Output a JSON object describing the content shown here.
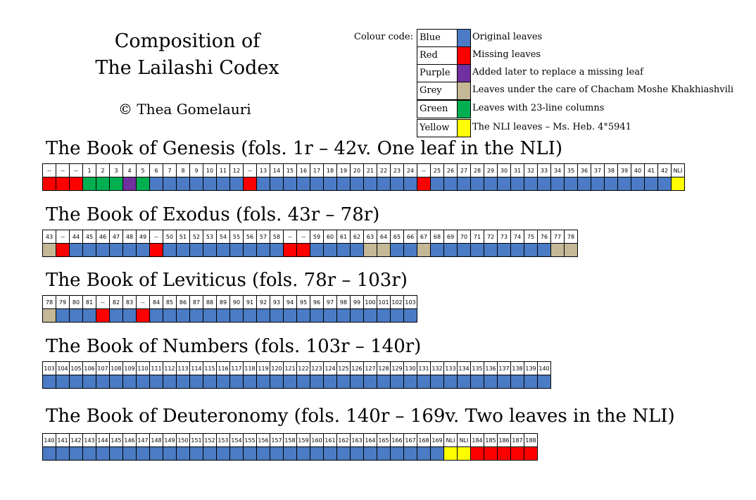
{
  "header": {
    "title_lines": [
      "Composition of",
      "The Lailashi Codex"
    ],
    "copyright": "© Thea Gomelauri"
  },
  "legend": {
    "caption": "Colour code:",
    "items": [
      {
        "name": "Blue",
        "color": "#4a7bc4",
        "description": "Original leaves"
      },
      {
        "name": "Red",
        "color": "#ff0000",
        "description": "Missing leaves"
      },
      {
        "name": "Purple",
        "color": "#7030a0",
        "description": "Added later to replace a missing leaf"
      },
      {
        "name": "Grey",
        "color": "#c4b896",
        "description": "Leaves under the care of Chacham Moshe Khakhiashvili"
      },
      {
        "name": "Green",
        "color": "#00b050",
        "description": "Leaves with 23-line columns"
      },
      {
        "name": "Yellow",
        "color": "#ffff00",
        "description": "The NLI leaves – Ms. Heb. 4°5941"
      }
    ]
  },
  "books": [
    {
      "title": "The Book of Genesis (fols. 1r – 42v. One leaf in the NLI)",
      "labels": [
        "--",
        "--",
        "--",
        "1",
        "2",
        "3",
        "4",
        "5",
        "6",
        "7",
        "8",
        "9",
        "10",
        "11",
        "12",
        "--",
        "13",
        "14",
        "15",
        "16",
        "17",
        "18",
        "19",
        "20",
        "21",
        "22",
        "23",
        "24",
        "--",
        "25",
        "26",
        "27",
        "28",
        "29",
        "30",
        "31",
        "32",
        "33",
        "34",
        "35",
        "36",
        "37",
        "38",
        "39",
        "40",
        "41",
        "42",
        "NLI"
      ],
      "colors": [
        "Red",
        "Red",
        "Red",
        "Green",
        "Green",
        "Green",
        "Purple",
        "Green",
        "Blue",
        "Blue",
        "Blue",
        "Blue",
        "Blue",
        "Blue",
        "Blue",
        "Red",
        "Blue",
        "Blue",
        "Blue",
        "Blue",
        "Blue",
        "Blue",
        "Blue",
        "Blue",
        "Blue",
        "Blue",
        "Blue",
        "Blue",
        "Red",
        "Blue",
        "Blue",
        "Blue",
        "Blue",
        "Blue",
        "Blue",
        "Blue",
        "Blue",
        "Blue",
        "Blue",
        "Blue",
        "Blue",
        "Blue",
        "Blue",
        "Blue",
        "Blue",
        "Blue",
        "Blue",
        "Yellow"
      ]
    },
    {
      "title": "The Book of Exodus (fols. 43r – 78r)",
      "labels": [
        "43",
        "--",
        "44",
        "45",
        "46",
        "47",
        "48",
        "49",
        "--",
        "50",
        "51",
        "52",
        "53",
        "54",
        "55",
        "56",
        "57",
        "58",
        "--",
        "--",
        "59",
        "60",
        "61",
        "62",
        "63",
        "64",
        "65",
        "66",
        "67",
        "68",
        "69",
        "70",
        "71",
        "72",
        "73",
        "74",
        "75",
        "76",
        "77",
        "78"
      ],
      "colors": [
        "Grey",
        "Red",
        "Blue",
        "Blue",
        "Blue",
        "Blue",
        "Blue",
        "Blue",
        "Red",
        "Blue",
        "Blue",
        "Blue",
        "Blue",
        "Blue",
        "Blue",
        "Blue",
        "Blue",
        "Blue",
        "Red",
        "Red",
        "Blue",
        "Blue",
        "Blue",
        "Blue",
        "Grey",
        "Grey",
        "Blue",
        "Blue",
        "Grey",
        "Blue",
        "Blue",
        "Blue",
        "Blue",
        "Blue",
        "Blue",
        "Blue",
        "Blue",
        "Blue",
        "Grey",
        "Grey"
      ]
    },
    {
      "title": "The Book of Leviticus (fols. 78r – 103r)",
      "labels": [
        "78",
        "79",
        "80",
        "81",
        "--",
        "82",
        "83",
        "--",
        "84",
        "85",
        "86",
        "87",
        "88",
        "89",
        "90",
        "91",
        "92",
        "93",
        "94",
        "95",
        "96",
        "97",
        "98",
        "99",
        "100",
        "101",
        "102",
        "103"
      ],
      "colors": [
        "Grey",
        "Blue",
        "Blue",
        "Blue",
        "Red",
        "Blue",
        "Blue",
        "Red",
        "Blue",
        "Blue",
        "Blue",
        "Blue",
        "Blue",
        "Blue",
        "Blue",
        "Blue",
        "Blue",
        "Blue",
        "Blue",
        "Blue",
        "Blue",
        "Blue",
        "Blue",
        "Blue",
        "Blue",
        "Blue",
        "Blue",
        "Blue"
      ]
    },
    {
      "title": "The Book of Numbers (fols. 103r – 140r)",
      "labels": [
        "103",
        "104",
        "105",
        "106",
        "107",
        "108",
        "109",
        "110",
        "111",
        "112",
        "113",
        "114",
        "115",
        "116",
        "117",
        "118",
        "119",
        "120",
        "121",
        "122",
        "123",
        "124",
        "125",
        "126",
        "127",
        "128",
        "129",
        "130",
        "131",
        "132",
        "133",
        "134",
        "135",
        "136",
        "137",
        "138",
        "139",
        "140"
      ],
      "colors": [
        "Blue",
        "Blue",
        "Blue",
        "Blue",
        "Blue",
        "Blue",
        "Blue",
        "Blue",
        "Blue",
        "Blue",
        "Blue",
        "Blue",
        "Blue",
        "Blue",
        "Blue",
        "Blue",
        "Blue",
        "Blue",
        "Blue",
        "Blue",
        "Blue",
        "Blue",
        "Blue",
        "Blue",
        "Blue",
        "Blue",
        "Blue",
        "Blue",
        "Blue",
        "Blue",
        "Blue",
        "Blue",
        "Blue",
        "Blue",
        "Blue",
        "Blue",
        "Blue",
        "Blue"
      ]
    },
    {
      "title": "The Book of Deuteronomy (fols. 140r – 169v. Two leaves in the NLI)",
      "labels": [
        "140",
        "141",
        "142",
        "143",
        "144",
        "145",
        "146",
        "147",
        "148",
        "149",
        "150",
        "151",
        "152",
        "153",
        "154",
        "155",
        "156",
        "157",
        "158",
        "159",
        "160",
        "161",
        "162",
        "163",
        "164",
        "165",
        "166",
        "167",
        "168",
        "169",
        "NLI",
        "NLI",
        "184",
        "185",
        "186",
        "187",
        "188"
      ],
      "colors": [
        "Blue",
        "Blue",
        "Blue",
        "Blue",
        "Blue",
        "Blue",
        "Blue",
        "Blue",
        "Blue",
        "Blue",
        "Blue",
        "Blue",
        "Blue",
        "Blue",
        "Blue",
        "Blue",
        "Blue",
        "Blue",
        "Blue",
        "Blue",
        "Blue",
        "Blue",
        "Blue",
        "Blue",
        "Blue",
        "Blue",
        "Blue",
        "Blue",
        "Blue",
        "Blue",
        "Yellow",
        "Yellow",
        "Red",
        "Red",
        "Red",
        "Red",
        "Red"
      ]
    }
  ]
}
